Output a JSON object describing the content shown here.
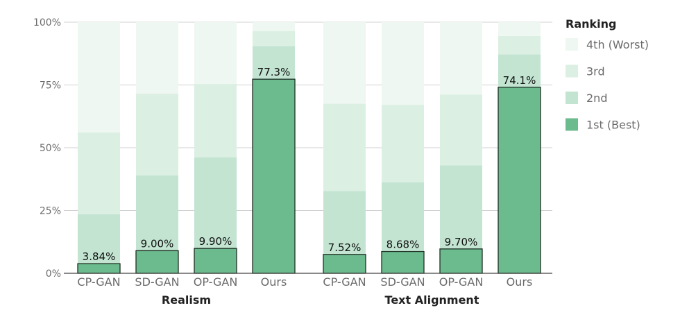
{
  "chart_data": {
    "type": "bar",
    "stacked": true,
    "y_tick_labels": [
      "0%",
      "25%",
      "50%",
      "75%",
      "100%"
    ],
    "ylim": [
      0,
      100
    ],
    "grid": true,
    "legend_position": "right",
    "groups": [
      {
        "label": "Realism",
        "categories": [
          "CP-GAN",
          "SD-GAN",
          "OP-GAN",
          "Ours"
        ],
        "series": [
          {
            "name": "1st (Best)",
            "values": [
              3.84,
              9.0,
              9.9,
              77.3
            ],
            "labels": [
              "3.84%",
              "9.00%",
              "9.90%",
              "77.3%"
            ]
          },
          {
            "name": "2nd",
            "values": [
              19.7,
              30.0,
              36.3,
              13.2
            ]
          },
          {
            "name": "3rd",
            "values": [
              32.6,
              32.5,
              29.2,
              6.0
            ]
          },
          {
            "name": "4th (Worst)",
            "values": [
              43.86,
              28.5,
              24.6,
              3.5
            ]
          }
        ]
      },
      {
        "label": "Text Alignment",
        "categories": [
          "CP-GAN",
          "SD-GAN",
          "OP-GAN",
          "Ours"
        ],
        "series": [
          {
            "name": "1st (Best)",
            "values": [
              7.52,
              8.68,
              9.7,
              74.1
            ],
            "labels": [
              "7.52%",
              "8.68%",
              "9.70%",
              "74.1%"
            ]
          },
          {
            "name": "2nd",
            "values": [
              25.2,
              27.6,
              33.3,
              13.1
            ]
          },
          {
            "name": "3rd",
            "values": [
              34.8,
              30.8,
              28.2,
              7.3
            ]
          },
          {
            "name": "4th (Worst)",
            "values": [
              32.48,
              32.92,
              28.8,
              5.5
            ]
          }
        ]
      }
    ],
    "legend": {
      "title": "Ranking",
      "items": [
        {
          "name": "4th (Worst)",
          "color": "#eef7f1"
        },
        {
          "name": "3rd",
          "color": "#dcefe3"
        },
        {
          "name": "2nd",
          "color": "#c2e4d1"
        },
        {
          "name": "1st (Best)",
          "color": "#6cbb8e"
        }
      ]
    },
    "colors": {
      "1st (Best)": "#6cbb8e",
      "2nd": "#c2e4d1",
      "3rd": "#dcefe3",
      "4th (Worst)": "#eef7f1",
      "grid": "#d0d0d0",
      "axis": "#444444"
    }
  }
}
